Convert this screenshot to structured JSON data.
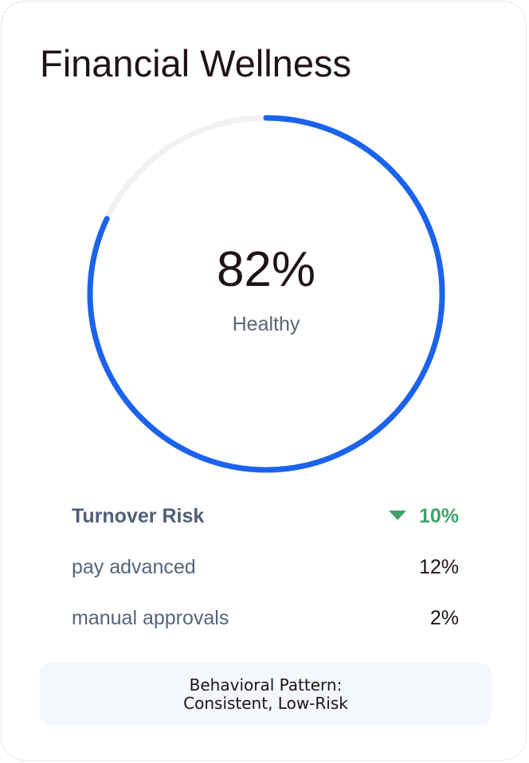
{
  "card": {
    "title": "Financial Wellness"
  },
  "gauge": {
    "value_label": "82%",
    "value": 82,
    "status": "Healthy",
    "track_color": "#f1f1f1",
    "progress_color": "#1b63ec"
  },
  "metrics": {
    "turnover_risk": {
      "label": "Turnover Risk",
      "value": "10%",
      "trend": "down",
      "trend_icon": "triangle-down-icon",
      "color": "#3fa36b"
    },
    "pay_advanced": {
      "label": "pay advanced",
      "value": "12%"
    },
    "manual_approvals": {
      "label": "manual approvals",
      "value": "2%"
    }
  },
  "pattern": {
    "line1": "Behavioral Pattern:",
    "line2": "Consistent, Low-Risk"
  }
}
